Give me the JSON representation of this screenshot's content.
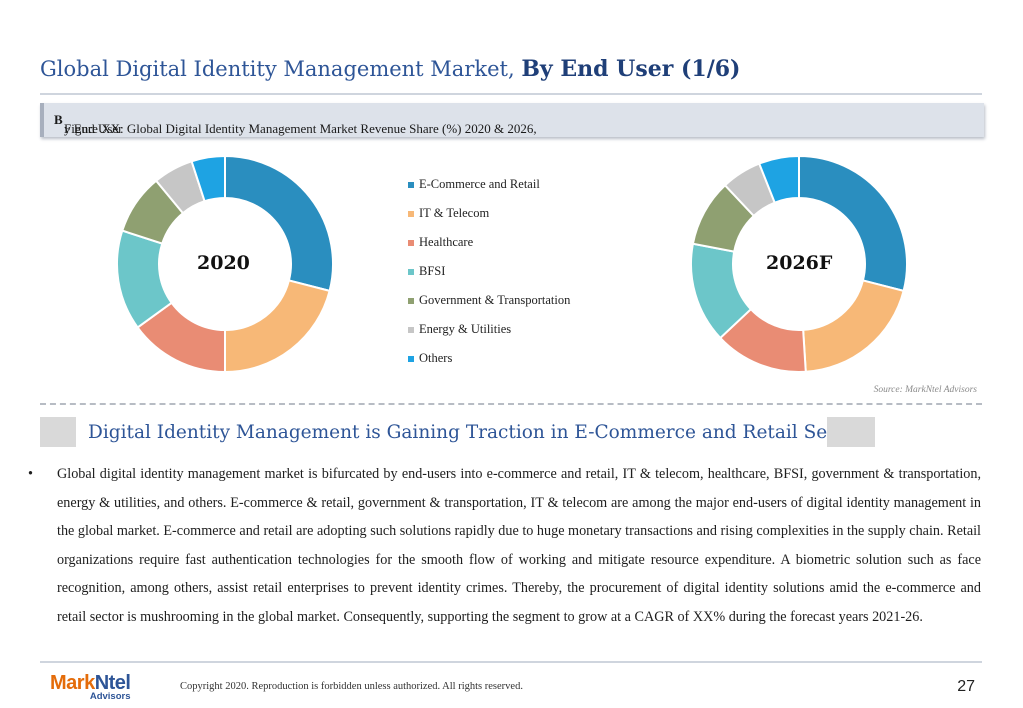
{
  "header": {
    "title_prefix": "Global Digital Identity Management Market, ",
    "title_bold": "By End User (1/6)"
  },
  "figure": {
    "caption_pre": "Figure XX: Global Digital Identity Management Market Revenue Share (%) 2020 & 2026, ",
    "caption_bold": "B",
    "caption_post": "y End User"
  },
  "chart_data": [
    {
      "type": "pie",
      "donut": true,
      "label": "2020",
      "categories": [
        "E-Commerce and Retail",
        "IT & Telecom",
        "Healthcare",
        "BFSI",
        "Government & Transportation",
        "Energy & Utilities",
        "Others"
      ],
      "values": [
        29,
        21,
        15,
        15,
        9,
        6,
        5
      ],
      "colors": [
        "#2a8ebf",
        "#f7b877",
        "#e98c74",
        "#6cc6c9",
        "#8fa071",
        "#c6c6c6",
        "#1ea3e3"
      ]
    },
    {
      "type": "pie",
      "donut": true,
      "label": "2026F",
      "categories": [
        "E-Commerce and Retail",
        "IT & Telecom",
        "Healthcare",
        "BFSI",
        "Government & Transportation",
        "Energy & Utilities",
        "Others"
      ],
      "values": [
        29,
        20,
        14,
        15,
        10,
        6,
        6
      ],
      "colors": [
        "#2a8ebf",
        "#f7b877",
        "#e98c74",
        "#6cc6c9",
        "#8fa071",
        "#c6c6c6",
        "#1ea3e3"
      ]
    }
  ],
  "legend": [
    {
      "label": "E-Commerce and Retail",
      "color": "#2a8ebf"
    },
    {
      "label": "IT & Telecom",
      "color": "#f7b877"
    },
    {
      "label": "Healthcare",
      "color": "#e98c74"
    },
    {
      "label": "BFSI",
      "color": "#6cc6c9"
    },
    {
      "label": "Government & Transportation",
      "color": "#8fa071"
    },
    {
      "label": "Energy & Utilities",
      "color": "#c6c6c6"
    },
    {
      "label": "Others",
      "color": "#1ea3e3"
    }
  ],
  "source": "Source: MarkNtel Advisors",
  "section": {
    "title": "Digital Identity Management is Gaining Traction in E-Commerce and Retail Sector"
  },
  "body": {
    "bullet": "•",
    "paragraph": "Global digital identity management market is bifurcated by end-users into e-commerce and retail, IT & telecom, healthcare, BFSI, government & transportation, energy & utilities, and others. E-commerce & retail, government & transportation, IT & telecom are among the major end-users of digital identity management in the global market. E-commerce and retail are adopting such solutions rapidly due to huge monetary transactions and rising complexities in the supply chain. Retail organizations require fast authentication technologies for the smooth flow of working and mitigate resource expenditure. A biometric solution such as face recognition, among others, assist retail enterprises to prevent identity crimes. Thereby, the procurement of digital identity solutions amid the e-commerce and retail sector is mushrooming in the global market. Consequently, supporting the segment to grow at a CAGR of XX% during the forecast years 2021-26."
  },
  "footer": {
    "logo_mark_a": "Mark",
    "logo_mark_b": "Ntel",
    "logo_sub": "Advisors",
    "copyright": "Copyright 2020. Reproduction is forbidden unless authorized. All rights reserved.",
    "page_number": "27"
  }
}
